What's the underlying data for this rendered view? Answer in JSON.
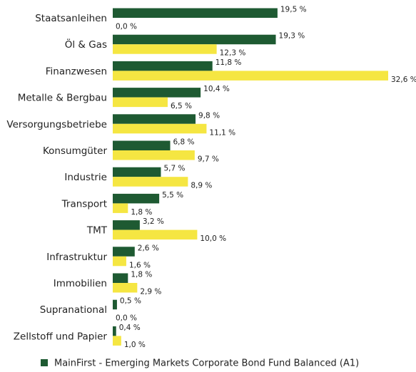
{
  "chart_data": {
    "type": "hbar",
    "categories": [
      "Staatsanleihen",
      "Öl & Gas",
      "Finanzwesen",
      "Metalle & Bergbau",
      "Versorgungsbetriebe",
      "Konsumgüter",
      "Industrie",
      "Transport",
      "TMT",
      "Infrastruktur",
      "Immobilien",
      "Supranational",
      "Zellstoff und Papier"
    ],
    "series": [
      {
        "name": "MainFirst - Emerging Markets Corporate Bond Fund Balanced (A1)",
        "color": "#1e5a32",
        "values": [
          19.5,
          19.3,
          11.8,
          10.4,
          9.8,
          6.8,
          5.7,
          5.5,
          3.2,
          2.6,
          1.8,
          0.5,
          0.4
        ],
        "value_labels": [
          "19,5 %",
          "19,3 %",
          "11,8 %",
          "10,4 %",
          "9,8 %",
          "6,8 %",
          "5,7 %",
          "5,5 %",
          "3,2 %",
          "2,6 %",
          "1,8 %",
          "0,5 %",
          "0,4 %"
        ]
      },
      {
        "color": "#f5e642",
        "values": [
          0.0,
          12.3,
          32.6,
          6.5,
          11.1,
          9.7,
          8.9,
          1.8,
          10.0,
          1.6,
          2.9,
          0.0,
          1.0
        ],
        "value_labels": [
          "0,0 %",
          "12,3 %",
          "32,6 %",
          "6,5 %",
          "11,1 %",
          "9,7 %",
          "8,9 %",
          "1,8 %",
          "10,0 %",
          "1,6 %",
          "2,9 %",
          "0,0 %",
          "1,0 %"
        ]
      }
    ],
    "legend": "bottom"
  }
}
